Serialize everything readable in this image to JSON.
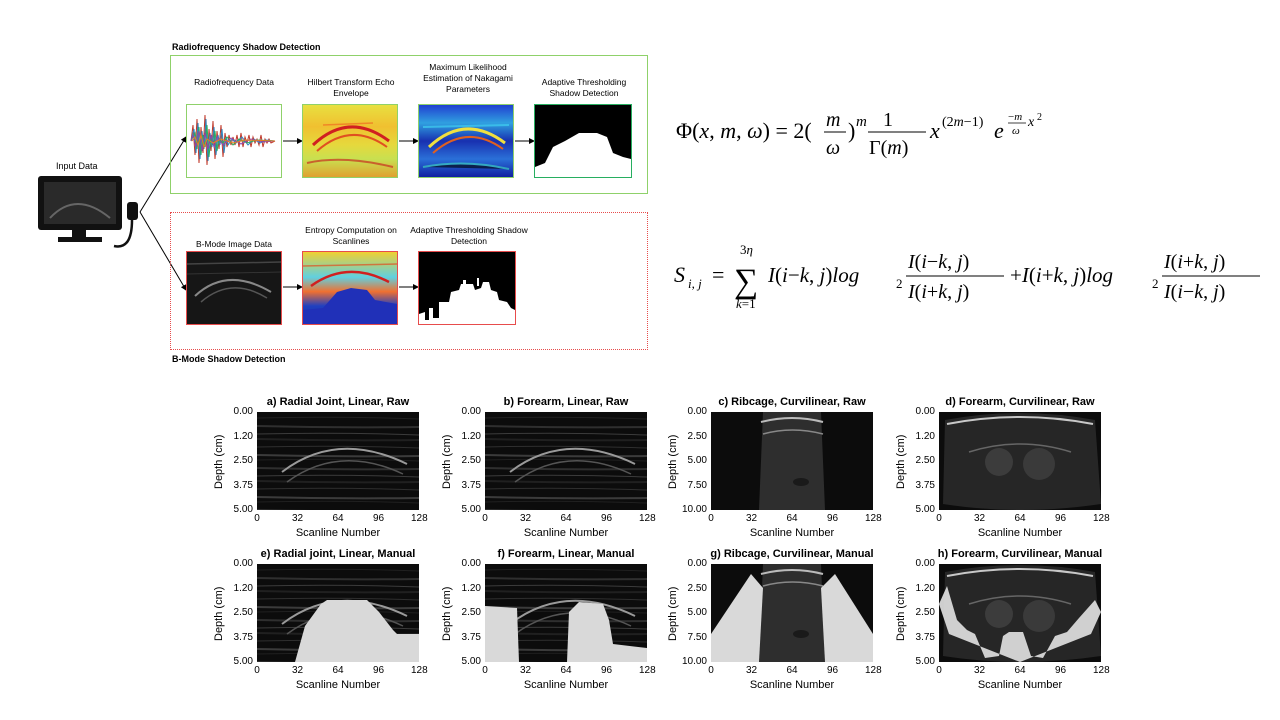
{
  "diagram": {
    "input_label": "Input Data",
    "rf_section": {
      "title": "Radiofrequency Shadow Detection",
      "steps": [
        "Radiofrequency Data",
        "Hilbert Transform Echo Envelope",
        "Maximum Likelihood Estimation of Nakagami Parameters",
        "Adaptive Thresholding Shadow Detection"
      ],
      "color": "#8fd16a"
    },
    "bmode_section": {
      "title": "B-Mode Shadow Detection",
      "steps": [
        "B-Mode Image Data",
        "Entropy Computation on Scanlines",
        "Adaptive Thresholding Shadow Detection"
      ],
      "color": "#e74c4c"
    }
  },
  "panels": [
    {
      "title": "a) Radial Joint, Linear, Raw",
      "yticks": [
        "0.00",
        "1.20",
        "2.50",
        "3.75",
        "5.00"
      ],
      "xticks": [
        "0",
        "32",
        "64",
        "96",
        "128"
      ],
      "xlabel": "Scanline Number",
      "ylabel": "Depth (cm)",
      "kind": "linear",
      "mask": "none"
    },
    {
      "title": "b) Forearm, Linear, Raw",
      "yticks": [
        "0.00",
        "1.20",
        "2.50",
        "3.75",
        "5.00"
      ],
      "xticks": [
        "0",
        "32",
        "64",
        "96",
        "128"
      ],
      "xlabel": "Scanline Number",
      "ylabel": "Depth (cm)",
      "kind": "linear",
      "mask": "none"
    },
    {
      "title": "c) Ribcage, Curvilinear, Raw",
      "yticks": [
        "0.00",
        "2.50",
        "5.00",
        "7.50",
        "10.00"
      ],
      "xticks": [
        "0",
        "32",
        "64",
        "96",
        "128"
      ],
      "xlabel": "Scanline Number",
      "ylabel": "Depth (cm)",
      "kind": "curv-narrow",
      "mask": "none"
    },
    {
      "title": "d) Forearm, Curvilinear, Raw",
      "yticks": [
        "0.00",
        "1.20",
        "2.50",
        "3.75",
        "5.00"
      ],
      "xticks": [
        "0",
        "32",
        "64",
        "96",
        "128"
      ],
      "xlabel": "Scanline Number",
      "ylabel": "Depth (cm)",
      "kind": "curv-wide",
      "mask": "none"
    },
    {
      "title": "e) Radial joint, Linear, Manual",
      "yticks": [
        "0.00",
        "1.20",
        "2.50",
        "3.75",
        "5.00"
      ],
      "xticks": [
        "0",
        "32",
        "64",
        "96",
        "128"
      ],
      "xlabel": "Scanline Number",
      "ylabel": "Depth (cm)",
      "kind": "linear",
      "mask": "e"
    },
    {
      "title": "f) Forearm, Linear, Manual",
      "yticks": [
        "0.00",
        "1.20",
        "2.50",
        "3.75",
        "5.00"
      ],
      "xticks": [
        "0",
        "32",
        "64",
        "96",
        "128"
      ],
      "xlabel": "Scanline Number",
      "ylabel": "Depth (cm)",
      "kind": "linear",
      "mask": "f"
    },
    {
      "title": "g) Ribcage, Curvilinear, Manual",
      "yticks": [
        "0.00",
        "2.50",
        "5.00",
        "7.50",
        "10.00"
      ],
      "xticks": [
        "0",
        "32",
        "64",
        "96",
        "128"
      ],
      "xlabel": "Scanline Number",
      "ylabel": "Depth (cm)",
      "kind": "curv-narrow",
      "mask": "g"
    },
    {
      "title": "h) Forearm, Curvilinear, Manual",
      "yticks": [
        "0.00",
        "1.20",
        "2.50",
        "3.75",
        "5.00"
      ],
      "xticks": [
        "0",
        "32",
        "64",
        "96",
        "128"
      ],
      "xlabel": "Scanline Number",
      "ylabel": "Depth (cm)",
      "kind": "curv-wide",
      "mask": "h"
    }
  ],
  "colors": {
    "mask": "#d9d9d9",
    "ultrasound_bg": "#111111"
  }
}
